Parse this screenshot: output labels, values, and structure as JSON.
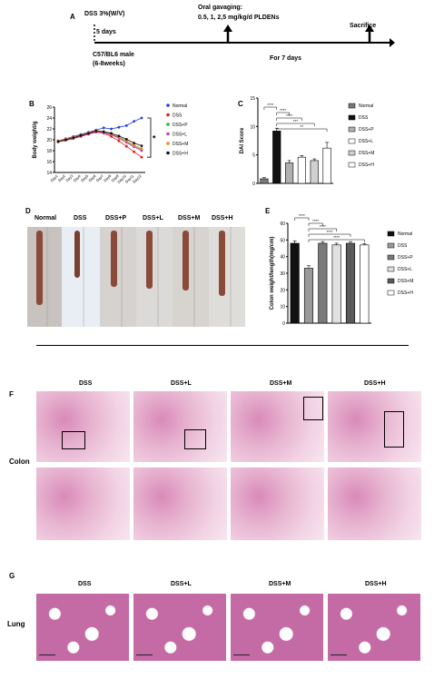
{
  "panels": {
    "A": "A",
    "B": "B",
    "C": "C",
    "D": "D",
    "E": "E",
    "F": "F",
    "G": "G"
  },
  "timeline": {
    "dss": "DSS 3%(W/V)",
    "days5": "5 days",
    "gavage1": "Oral gavaging:",
    "gavage2": "0.5, 1, 2,5 mg/kg/d PLDENs",
    "sacrifice": "Sacrifice",
    "mouse1": "C57/BL6 male",
    "mouse2": "(6-8weeks)",
    "days7": "For 7 days"
  },
  "legend_items": [
    "Normal",
    "DSS",
    "DSS+P",
    "DSS+L",
    "DSS+M",
    "DSS+H"
  ],
  "colors": {
    "Normal": "#1f3fe0",
    "DSS": "#e02020",
    "DSS+P": "#2eb82e",
    "DSS+L": "#c040c0",
    "DSS+M": "#f08a1c",
    "DSS+H": "#111111"
  },
  "chart_data": [
    {
      "type": "line",
      "ylabel": "Body weight/g",
      "ylim": [
        14,
        26
      ],
      "yticks": [
        "14",
        "16",
        "18",
        "20",
        "22",
        "24",
        "26"
      ],
      "categories": [
        "Day1",
        "Day2",
        "Day3",
        "Day4",
        "Day5",
        "Day6",
        "Day7",
        "Day8",
        "Day9",
        "Day10",
        "Day11",
        "Day12"
      ],
      "annotation": "*",
      "series": [
        {
          "name": "Normal",
          "values": [
            19.8,
            20.2,
            20.6,
            21.0,
            21.4,
            21.8,
            22.2,
            22.0,
            22.3,
            22.6,
            23.4,
            24.0
          ]
        },
        {
          "name": "DSS",
          "values": [
            19.6,
            19.9,
            20.2,
            20.6,
            21.0,
            21.4,
            21.2,
            20.6,
            19.8,
            18.8,
            17.8,
            16.8
          ]
        },
        {
          "name": "DSS+P",
          "values": [
            19.7,
            20.0,
            20.4,
            20.8,
            21.2,
            21.6,
            21.4,
            21.0,
            20.4,
            19.6,
            18.8,
            18.2
          ]
        },
        {
          "name": "DSS+L",
          "values": [
            19.7,
            20.0,
            20.3,
            20.7,
            21.1,
            21.5,
            21.3,
            20.9,
            20.3,
            19.5,
            18.7,
            18.0
          ]
        },
        {
          "name": "DSS+M",
          "values": [
            19.8,
            20.1,
            20.5,
            20.9,
            21.3,
            21.7,
            21.5,
            21.1,
            20.5,
            19.8,
            19.0,
            18.4
          ]
        },
        {
          "name": "DSS+H",
          "values": [
            19.7,
            20.0,
            20.4,
            20.8,
            21.2,
            21.6,
            21.5,
            21.2,
            20.7,
            20.1,
            19.4,
            18.9
          ]
        }
      ]
    },
    {
      "type": "bar",
      "ylabel": "DAI Score",
      "ylim": [
        0,
        15
      ],
      "yticks": [
        "0",
        "5",
        "10",
        "15"
      ],
      "categories": [
        "Normal",
        "DSS",
        "DSS+P",
        "DSS+L",
        "DSS+M",
        "DSS+H"
      ],
      "values": [
        0.8,
        9.2,
        3.6,
        4.6,
        4.0,
        6.2
      ],
      "errors": [
        0.2,
        0.5,
        0.4,
        0.3,
        0.3,
        1.0
      ],
      "fills": [
        "#7a7a7a",
        "#111111",
        "#b0b0b0",
        "#ffffff",
        "#d0d0d0",
        "#ffffff"
      ],
      "significance": [
        "****",
        "****",
        "****",
        "***",
        "**"
      ]
    },
    {
      "type": "bar",
      "ylabel": "Colon weight/length(mg/cm)",
      "ylim": [
        0,
        60
      ],
      "yticks": [
        "0",
        "10",
        "20",
        "30",
        "40",
        "50",
        "60"
      ],
      "categories": [
        "Normal",
        "DSS",
        "DSS+P",
        "DSS+L",
        "DSS+M",
        "DSS+H"
      ],
      "values": [
        48,
        33,
        48,
        47,
        48,
        47
      ],
      "errors": [
        1.5,
        1.5,
        1.0,
        1.0,
        1.0,
        0.8
      ],
      "fills": [
        "#111111",
        "#9a9a9a",
        "#7a7a7a",
        "#e0e0e0",
        "#5a5a5a",
        "#ffffff"
      ],
      "significance": [
        "****",
        "****",
        "****",
        "****",
        "****"
      ]
    }
  ],
  "colon_groups": [
    "Normal",
    "DSS",
    "DSS+P",
    "DSS+L",
    "DSS+M",
    "DSS+H"
  ],
  "histology": {
    "F_groups": [
      "DSS",
      "DSS+L",
      "DSS+M",
      "DSS+H"
    ],
    "F_row": "Colon",
    "G_groups": [
      "DSS",
      "DSS+L",
      "DSS+M",
      "DSS+H"
    ],
    "G_row": "Lung"
  }
}
